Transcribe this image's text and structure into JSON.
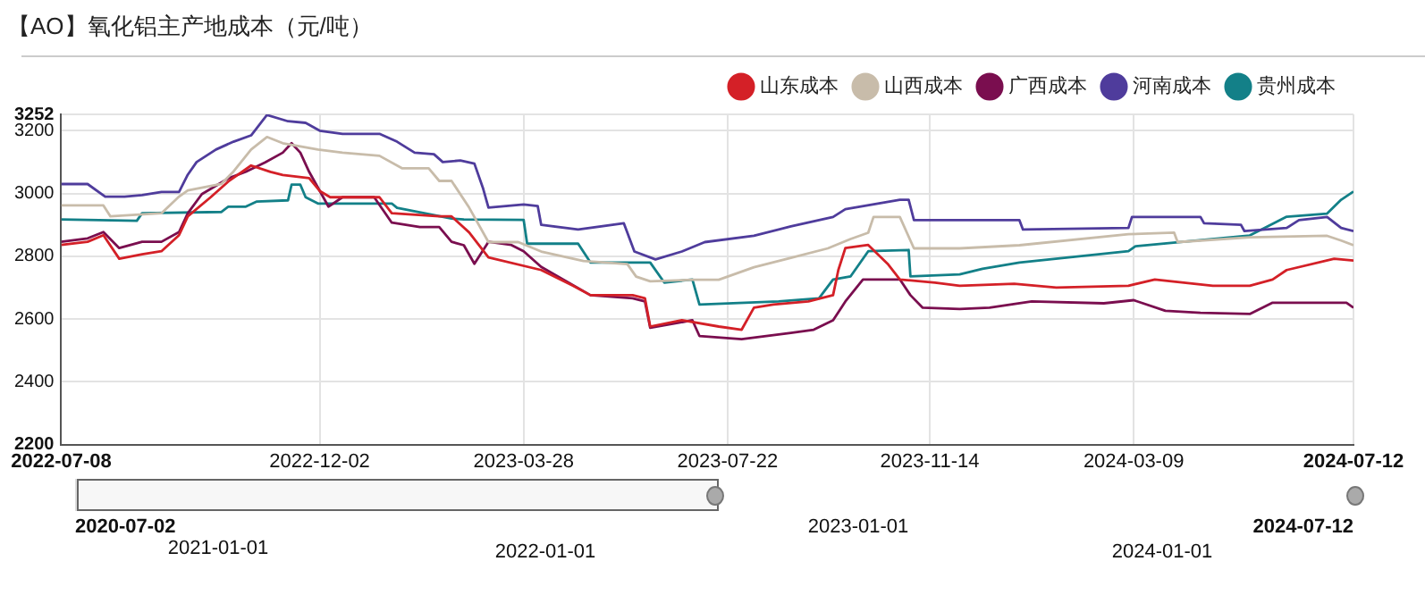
{
  "chart_data": {
    "type": "line",
    "title": "【AO】氧化铝主产地成本（元/吨）",
    "xlim": [
      "2022-07-08",
      "2024-07-12"
    ],
    "xticks": [
      "2022-07-08",
      "2022-12-02",
      "2023-03-28",
      "2023-07-22",
      "2023-11-14",
      "2024-03-09",
      "2024-07-12"
    ],
    "ylim": [
      2200,
      3252
    ],
    "yticks": [
      2200,
      2400,
      2600,
      2800,
      3000,
      3200,
      3252
    ],
    "grid": true,
    "legend": "top right",
    "marker": "none",
    "annotations": [
      "2020-07-02",
      "2021-01-01",
      "2022-01-01",
      "2023-01-01",
      "2024-01-01",
      "2024-07-12"
    ],
    "series": [
      {
        "name": "山东成本",
        "color": "#d42027",
        "x": [
          "2022-07-08",
          "2022-07-23",
          "2022-08-01",
          "2022-08-10",
          "2022-08-23",
          "2022-09-03",
          "2022-09-13",
          "2022-09-18",
          "2022-10-01",
          "2022-10-11",
          "2022-10-24",
          "2022-11-04",
          "2022-11-11",
          "2022-11-26",
          "2022-12-02",
          "2022-12-08",
          "2023-01-05",
          "2023-01-12",
          "2023-02-08",
          "2023-02-15",
          "2023-02-25",
          "2023-03-08",
          "2023-04-07",
          "2023-04-25",
          "2023-05-05",
          "2023-05-29",
          "2023-06-05",
          "2023-06-08",
          "2023-06-26",
          "2023-07-17",
          "2023-07-30",
          "2023-08-06",
          "2023-08-17",
          "2023-09-06",
          "2023-09-20",
          "2023-09-23",
          "2023-09-27",
          "2023-10-10",
          "2023-10-21",
          "2023-10-28",
          "2023-11-17",
          "2023-12-01",
          "2024-01-01",
          "2024-01-25",
          "2024-03-06",
          "2024-03-21",
          "2024-04-23",
          "2024-05-14",
          "2024-05-27",
          "2024-06-04",
          "2024-07-01",
          "2024-07-12"
        ],
        "values": [
          2836,
          2846,
          2867,
          2792,
          2806,
          2816,
          2867,
          2927,
          2988,
          3038,
          3089,
          3069,
          3059,
          3049,
          3008,
          2988,
          2988,
          2937,
          2927,
          2927,
          2876,
          2796,
          2756,
          2706,
          2676,
          2676,
          2666,
          2576,
          2596,
          2576,
          2566,
          2636,
          2646,
          2656,
          2676,
          2756,
          2826,
          2836,
          2776,
          2726,
          2716,
          2706,
          2712,
          2700,
          2706,
          2726,
          2706,
          2706,
          2726,
          2756,
          2792,
          2786
        ]
      },
      {
        "name": "山西成本",
        "color": "#c8bcaa",
        "x": [
          "2022-07-08",
          "2022-08-01",
          "2022-08-05",
          "2022-09-03",
          "2022-09-13",
          "2022-09-18",
          "2022-10-07",
          "2022-10-14",
          "2022-10-24",
          "2022-11-02",
          "2022-11-11",
          "2022-12-01",
          "2022-12-15",
          "2023-01-05",
          "2023-01-18",
          "2023-02-02",
          "2023-02-08",
          "2023-02-15",
          "2023-02-25",
          "2023-03-08",
          "2023-03-25",
          "2023-04-07",
          "2023-05-01",
          "2023-05-26",
          "2023-05-31",
          "2023-06-08",
          "2023-07-02",
          "2023-07-17",
          "2023-08-06",
          "2023-08-27",
          "2023-09-17",
          "2023-09-30",
          "2023-10-10",
          "2023-10-13",
          "2023-10-28",
          "2023-11-05",
          "2023-12-01",
          "2024-01-04",
          "2024-03-06",
          "2024-04-01",
          "2024-04-03",
          "2024-05-14",
          "2024-06-27",
          "2024-07-05",
          "2024-07-12"
        ],
        "values": [
          2962,
          2962,
          2927,
          2937,
          2990,
          3010,
          3030,
          3070,
          3140,
          3180,
          3160,
          3140,
          3130,
          3120,
          3080,
          3080,
          3040,
          3040,
          2955,
          2845,
          2845,
          2815,
          2785,
          2775,
          2735,
          2720,
          2725,
          2725,
          2765,
          2795,
          2825,
          2855,
          2875,
          2925,
          2925,
          2825,
          2825,
          2835,
          2870,
          2875,
          2845,
          2860,
          2865,
          2850,
          2835
        ]
      },
      {
        "name": "广西成本",
        "color": "#7a0e4f",
        "x": [
          "2022-07-08",
          "2022-07-23",
          "2022-08-01",
          "2022-08-10",
          "2022-08-23",
          "2022-09-03",
          "2022-09-13",
          "2022-09-18",
          "2022-09-26",
          "2022-10-11",
          "2022-10-21",
          "2022-11-01",
          "2022-11-11",
          "2022-11-16",
          "2022-11-21",
          "2022-11-26",
          "2022-12-07",
          "2022-12-15",
          "2023-01-02",
          "2023-01-12",
          "2023-01-28",
          "2023-02-08",
          "2023-02-15",
          "2023-02-22",
          "2023-02-28",
          "2023-03-08",
          "2023-03-21",
          "2023-03-28",
          "2023-04-07",
          "2023-05-05",
          "2023-05-29",
          "2023-06-05",
          "2023-06-08",
          "2023-07-02",
          "2023-07-06",
          "2023-07-30",
          "2023-08-27",
          "2023-09-09",
          "2023-09-20",
          "2023-09-27",
          "2023-10-07",
          "2023-10-28",
          "2023-11-03",
          "2023-11-10",
          "2023-12-01",
          "2023-12-18",
          "2024-01-11",
          "2024-02-21",
          "2024-03-09",
          "2024-03-27",
          "2024-04-16",
          "2024-05-14",
          "2024-05-27",
          "2024-07-08",
          "2024-07-12"
        ],
        "values": [
          2846,
          2857,
          2877,
          2826,
          2846,
          2846,
          2877,
          2937,
          2998,
          3048,
          3069,
          3099,
          3130,
          3160,
          3130,
          3069,
          2958,
          2988,
          2988,
          2907,
          2893,
          2893,
          2846,
          2835,
          2776,
          2846,
          2836,
          2816,
          2766,
          2676,
          2666,
          2656,
          2572,
          2596,
          2546,
          2536,
          2556,
          2566,
          2596,
          2656,
          2726,
          2726,
          2676,
          2636,
          2632,
          2636,
          2656,
          2650,
          2660,
          2626,
          2620,
          2616,
          2652,
          2652,
          2636
        ]
      },
      {
        "name": "河南成本",
        "color": "#4f3c9c",
        "x": [
          "2022-07-08",
          "2022-07-23",
          "2022-08-02",
          "2022-08-13",
          "2022-08-23",
          "2022-09-03",
          "2022-09-13",
          "2022-09-18",
          "2022-09-23",
          "2022-10-04",
          "2022-10-14",
          "2022-10-24",
          "2022-11-02",
          "2022-11-14",
          "2022-11-24",
          "2022-12-02",
          "2022-12-15",
          "2023-01-05",
          "2023-01-15",
          "2023-01-25",
          "2023-02-05",
          "2023-02-10",
          "2023-02-20",
          "2023-02-28",
          "2023-03-05",
          "2023-03-08",
          "2023-03-28",
          "2023-04-05",
          "2023-04-07",
          "2023-04-28",
          "2023-05-24",
          "2023-05-30",
          "2023-06-11",
          "2023-06-26",
          "2023-07-09",
          "2023-08-06",
          "2023-08-27",
          "2023-09-20",
          "2023-09-27",
          "2023-10-28",
          "2023-11-02",
          "2023-11-05",
          "2023-12-01",
          "2024-01-04",
          "2024-01-06",
          "2024-03-06",
          "2024-03-08",
          "2024-04-16",
          "2024-04-18",
          "2024-05-09",
          "2024-05-11",
          "2024-06-04",
          "2024-06-11",
          "2024-06-27",
          "2024-07-05",
          "2024-07-12"
        ],
        "values": [
          3030,
          3030,
          2990,
          2990,
          2995,
          3005,
          3005,
          3060,
          3100,
          3140,
          3165,
          3185,
          3250,
          3230,
          3225,
          3200,
          3190,
          3190,
          3165,
          3130,
          3125,
          3100,
          3105,
          3095,
          3015,
          2955,
          2965,
          2960,
          2900,
          2885,
          2905,
          2815,
          2790,
          2815,
          2845,
          2865,
          2895,
          2925,
          2950,
          2980,
          2980,
          2915,
          2915,
          2915,
          2885,
          2890,
          2925,
          2925,
          2905,
          2900,
          2880,
          2890,
          2915,
          2925,
          2890,
          2880
        ]
      },
      {
        "name": "贵州成本",
        "color": "#138088",
        "x": [
          "2022-07-08",
          "2022-08-20",
          "2022-08-23",
          "2022-10-07",
          "2022-10-11",
          "2022-10-21",
          "2022-10-27",
          "2022-11-14",
          "2022-11-16",
          "2022-11-21",
          "2022-11-24",
          "2022-12-01",
          "2023-01-12",
          "2023-01-15",
          "2023-02-15",
          "2023-02-22",
          "2023-03-28",
          "2023-03-30",
          "2023-04-28",
          "2023-05-05",
          "2023-06-08",
          "2023-06-16",
          "2023-07-02",
          "2023-07-06",
          "2023-08-20",
          "2023-09-12",
          "2023-09-20",
          "2023-09-30",
          "2023-10-10",
          "2023-11-02",
          "2023-11-03",
          "2023-12-01",
          "2023-12-14",
          "2024-01-04",
          "2024-03-06",
          "2024-03-10",
          "2024-05-14",
          "2024-06-04",
          "2024-06-27",
          "2024-07-05",
          "2024-07-12"
        ],
        "values": [
          2917,
          2913,
          2937,
          2941,
          2958,
          2958,
          2974,
          2978,
          3028,
          3028,
          2988,
          2968,
          2968,
          2954,
          2920,
          2917,
          2916,
          2840,
          2840,
          2780,
          2780,
          2716,
          2726,
          2646,
          2656,
          2666,
          2726,
          2736,
          2816,
          2820,
          2736,
          2742,
          2760,
          2780,
          2816,
          2832,
          2866,
          2926,
          2936,
          2980,
          3006
        ]
      }
    ]
  }
}
